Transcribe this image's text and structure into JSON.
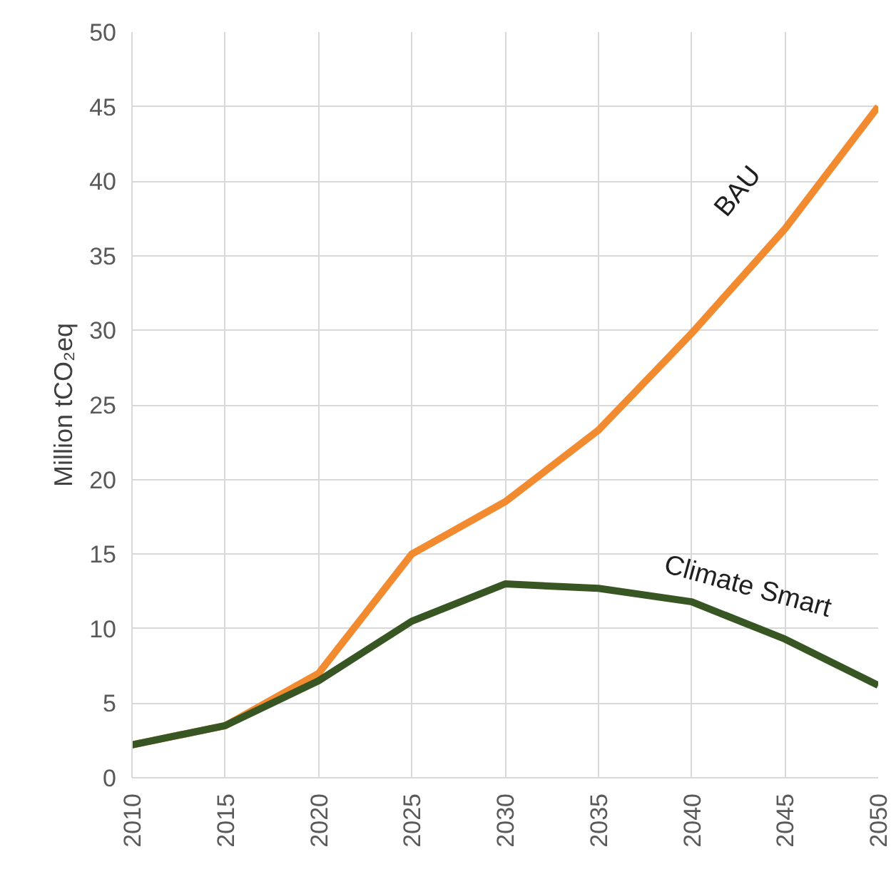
{
  "chart_data": {
    "type": "line",
    "ylabel": "Million tCO₂eq",
    "x": [
      2010,
      2015,
      2020,
      2025,
      2030,
      2035,
      2040,
      2045,
      2050
    ],
    "series": [
      {
        "name": "BAU",
        "color": "#f28a30",
        "values": [
          2.2,
          3.5,
          7,
          15,
          18.5,
          23.3,
          29.8,
          36.8,
          45
        ]
      },
      {
        "name": "Climate Smart",
        "color": "#375623",
        "values": [
          2.2,
          3.5,
          6.5,
          10.5,
          13,
          12.7,
          11.8,
          9.3,
          6.2
        ]
      }
    ],
    "xlim": [
      2010,
      2050
    ],
    "xticks": [
      2010,
      2015,
      2020,
      2025,
      2030,
      2035,
      2040,
      2045,
      2050
    ],
    "ylim": [
      0,
      50
    ],
    "yticks": [
      0,
      5,
      10,
      15,
      20,
      25,
      30,
      35,
      40,
      45,
      50
    ],
    "grid": true,
    "marker": "none",
    "line_style": "solid"
  }
}
